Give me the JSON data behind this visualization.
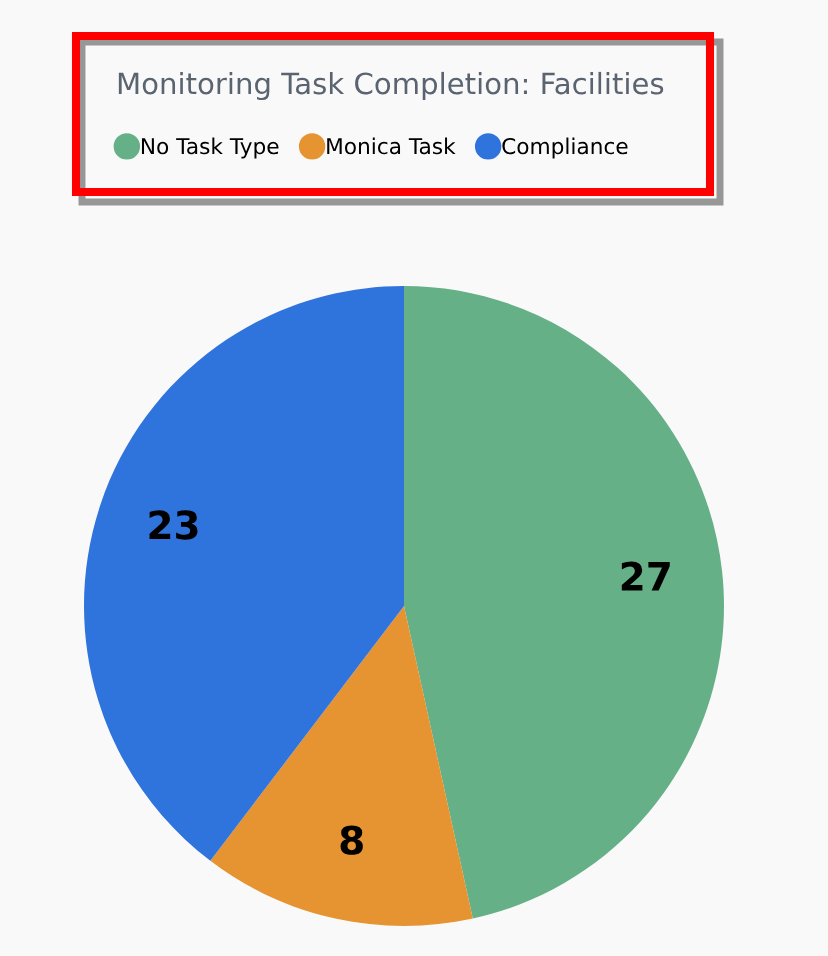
{
  "chart_data": {
    "type": "pie",
    "title": "Monitoring Task Completion: Facilities",
    "categories": [
      "No Task Type",
      "Monica Task",
      "Compliance"
    ],
    "values": [
      27,
      8,
      23
    ],
    "colors": [
      "#66b088",
      "#e69332",
      "#2f73dc"
    ],
    "data_labels": true,
    "legend": "top"
  }
}
